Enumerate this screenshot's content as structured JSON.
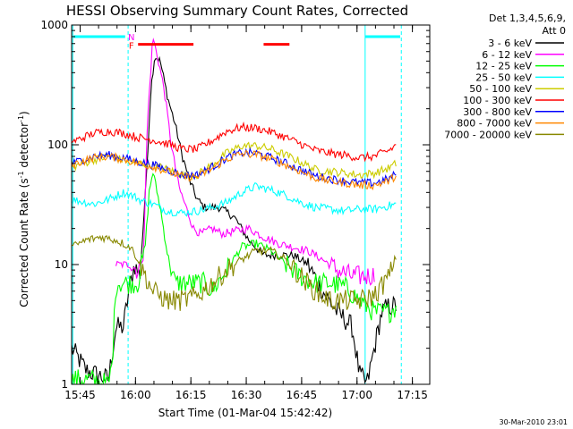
{
  "chart_data": {
    "type": "line",
    "title": "HESSI Observing Summary Count Rates, Corrected",
    "xlabel": "Start Time (01-Mar-04 15:42:42)",
    "ylabel_main": "Corrected Count Rate (s",
    "ylabel_sup1": "-1",
    "ylabel_mid": " detector",
    "ylabel_sup2": "-1",
    "ylabel_end": ")",
    "yscale": "log",
    "ylim": [
      1,
      1000
    ],
    "xlim_minutes": [
      0,
      97
    ],
    "yticks": [
      {
        "v": 1,
        "label": "1"
      },
      {
        "v": 10,
        "label": "10"
      },
      {
        "v": 100,
        "label": "100"
      },
      {
        "v": 1000,
        "label": "1000"
      }
    ],
    "xticks": [
      {
        "m": 2.3,
        "label": "15:45"
      },
      {
        "m": 17.3,
        "label": "16:00"
      },
      {
        "m": 32.3,
        "label": "16:15"
      },
      {
        "m": 47.3,
        "label": "16:30"
      },
      {
        "m": 62.3,
        "label": "16:45"
      },
      {
        "m": 77.3,
        "label": "17:00"
      },
      {
        "m": 92.3,
        "label": "17:15"
      }
    ],
    "legend_header": [
      "Det 1,3,4,5,6,9,",
      "Att 0"
    ],
    "legend_position": "right",
    "series": [
      {
        "name": "3 - 6 keV",
        "color": "#000000",
        "points": [
          [
            0,
            2
          ],
          [
            4,
            1.3
          ],
          [
            10,
            1.1
          ],
          [
            12,
            3
          ],
          [
            14,
            3
          ],
          [
            15.5,
            6
          ],
          [
            17,
            10
          ],
          [
            18.5,
            8
          ],
          [
            20,
            40
          ],
          [
            21.5,
            300
          ],
          [
            22.5,
            550
          ],
          [
            24,
            500
          ],
          [
            26,
            250
          ],
          [
            28,
            150
          ],
          [
            30,
            80
          ],
          [
            32,
            50
          ],
          [
            34,
            35
          ],
          [
            36,
            30
          ],
          [
            40,
            30
          ],
          [
            44,
            25
          ],
          [
            48,
            16
          ],
          [
            52,
            12
          ],
          [
            56,
            12
          ],
          [
            60,
            12
          ],
          [
            64,
            10
          ],
          [
            68,
            6
          ],
          [
            72,
            4
          ],
          [
            74,
            3.5
          ],
          [
            76,
            3
          ],
          [
            78,
            1.2
          ],
          [
            80,
            1
          ],
          [
            82,
            2
          ],
          [
            84,
            4
          ],
          [
            86,
            4.5
          ],
          [
            88,
            4.5
          ]
        ]
      },
      {
        "name": "6 - 12 keV",
        "color": "#ff00ff",
        "points": [
          [
            12,
            10
          ],
          [
            16,
            10
          ],
          [
            18,
            9
          ],
          [
            19.5,
            12
          ],
          [
            20.5,
            150
          ],
          [
            22,
            800
          ],
          [
            23.5,
            500
          ],
          [
            25,
            300
          ],
          [
            27,
            100
          ],
          [
            29,
            45
          ],
          [
            31,
            30
          ],
          [
            33,
            20
          ],
          [
            35,
            18
          ],
          [
            38,
            20
          ],
          [
            41,
            18
          ],
          [
            44,
            19
          ],
          [
            48,
            20
          ],
          [
            52,
            17
          ],
          [
            56,
            15
          ],
          [
            60,
            14
          ],
          [
            64,
            13
          ],
          [
            68,
            11
          ],
          [
            72,
            9
          ],
          [
            76,
            8
          ],
          [
            80,
            8
          ],
          [
            82,
            8.2
          ]
        ]
      },
      {
        "name": "12 - 25 keV",
        "color": "#00ff00",
        "points": [
          [
            0,
            1.1
          ],
          [
            5,
            1.1
          ],
          [
            10,
            1
          ],
          [
            11,
            1.5
          ],
          [
            12,
            7
          ],
          [
            16,
            7
          ],
          [
            18,
            7
          ],
          [
            20,
            15
          ],
          [
            21,
            40
          ],
          [
            22,
            60
          ],
          [
            24,
            30
          ],
          [
            26,
            12
          ],
          [
            28,
            7
          ],
          [
            32,
            7
          ],
          [
            36,
            7
          ],
          [
            38,
            6
          ],
          [
            42,
            9
          ],
          [
            46,
            14
          ],
          [
            50,
            15
          ],
          [
            54,
            13
          ],
          [
            58,
            10
          ],
          [
            62,
            8
          ],
          [
            66,
            7
          ],
          [
            70,
            7
          ],
          [
            74,
            6.5
          ],
          [
            78,
            5
          ],
          [
            82,
            4
          ],
          [
            86,
            4
          ],
          [
            88,
            4.5
          ]
        ]
      },
      {
        "name": "25 - 50 keV",
        "color": "#00ffff",
        "points": [
          [
            0,
            35
          ],
          [
            6,
            32
          ],
          [
            10,
            35
          ],
          [
            14,
            40
          ],
          [
            17,
            37
          ],
          [
            19,
            34
          ],
          [
            22,
            32
          ],
          [
            26,
            28
          ],
          [
            30,
            27
          ],
          [
            34,
            28
          ],
          [
            38,
            30
          ],
          [
            42,
            33
          ],
          [
            46,
            40
          ],
          [
            50,
            45
          ],
          [
            54,
            42
          ],
          [
            58,
            38
          ],
          [
            62,
            33
          ],
          [
            66,
            30
          ],
          [
            70,
            29
          ],
          [
            74,
            28
          ],
          [
            78,
            29
          ],
          [
            82,
            29
          ],
          [
            86,
            31
          ],
          [
            88,
            32
          ]
        ]
      },
      {
        "name": "50 - 100 keV",
        "color": "#cccc00",
        "points": [
          [
            0,
            65
          ],
          [
            6,
            75
          ],
          [
            10,
            80
          ],
          [
            14,
            75
          ],
          [
            18,
            70
          ],
          [
            22,
            68
          ],
          [
            26,
            62
          ],
          [
            30,
            56
          ],
          [
            34,
            56
          ],
          [
            38,
            68
          ],
          [
            42,
            85
          ],
          [
            46,
            98
          ],
          [
            50,
            98
          ],
          [
            54,
            92
          ],
          [
            58,
            82
          ],
          [
            62,
            72
          ],
          [
            66,
            62
          ],
          [
            70,
            60
          ],
          [
            74,
            58
          ],
          [
            78,
            56
          ],
          [
            82,
            58
          ],
          [
            86,
            64
          ],
          [
            88,
            70
          ]
        ]
      },
      {
        "name": "100 - 300 keV",
        "color": "#ff0000",
        "points": [
          [
            0,
            105
          ],
          [
            6,
            125
          ],
          [
            10,
            130
          ],
          [
            14,
            125
          ],
          [
            18,
            115
          ],
          [
            22,
            110
          ],
          [
            26,
            102
          ],
          [
            30,
            92
          ],
          [
            34,
            92
          ],
          [
            38,
            108
          ],
          [
            42,
            130
          ],
          [
            46,
            140
          ],
          [
            50,
            138
          ],
          [
            54,
            128
          ],
          [
            58,
            115
          ],
          [
            62,
            102
          ],
          [
            66,
            90
          ],
          [
            70,
            85
          ],
          [
            74,
            82
          ],
          [
            78,
            78
          ],
          [
            82,
            80
          ],
          [
            86,
            90
          ],
          [
            88,
            100
          ]
        ]
      },
      {
        "name": "300 - 800 keV",
        "color": "#0000ff",
        "points": [
          [
            0,
            70
          ],
          [
            6,
            80
          ],
          [
            10,
            82
          ],
          [
            14,
            78
          ],
          [
            18,
            72
          ],
          [
            22,
            68
          ],
          [
            26,
            62
          ],
          [
            30,
            56
          ],
          [
            34,
            56
          ],
          [
            38,
            65
          ],
          [
            42,
            78
          ],
          [
            46,
            86
          ],
          [
            50,
            85
          ],
          [
            54,
            78
          ],
          [
            58,
            70
          ],
          [
            62,
            62
          ],
          [
            66,
            55
          ],
          [
            70,
            52
          ],
          [
            74,
            50
          ],
          [
            78,
            48
          ],
          [
            82,
            48
          ],
          [
            86,
            52
          ],
          [
            88,
            58
          ]
        ]
      },
      {
        "name": "800 - 7000 keV",
        "color": "#ff8800",
        "points": [
          [
            0,
            68
          ],
          [
            6,
            78
          ],
          [
            10,
            80
          ],
          [
            14,
            76
          ],
          [
            18,
            70
          ],
          [
            22,
            66
          ],
          [
            26,
            60
          ],
          [
            30,
            54
          ],
          [
            34,
            54
          ],
          [
            38,
            63
          ],
          [
            42,
            76
          ],
          [
            46,
            84
          ],
          [
            50,
            83
          ],
          [
            54,
            76
          ],
          [
            58,
            68
          ],
          [
            62,
            60
          ],
          [
            66,
            53
          ],
          [
            70,
            50
          ],
          [
            74,
            48
          ],
          [
            78,
            46
          ],
          [
            82,
            46
          ],
          [
            86,
            50
          ],
          [
            88,
            56
          ]
        ]
      },
      {
        "name": "7000 - 20000 keV",
        "color": "#888800",
        "points": [
          [
            0,
            14
          ],
          [
            4,
            16
          ],
          [
            8,
            17
          ],
          [
            12,
            16
          ],
          [
            16,
            14
          ],
          [
            18,
            11
          ],
          [
            20,
            8
          ],
          [
            22,
            6
          ],
          [
            26,
            5
          ],
          [
            30,
            5
          ],
          [
            34,
            5.5
          ],
          [
            38,
            7
          ],
          [
            42,
            9
          ],
          [
            46,
            11
          ],
          [
            50,
            13
          ],
          [
            54,
            13
          ],
          [
            58,
            11
          ],
          [
            62,
            8
          ],
          [
            66,
            6
          ],
          [
            70,
            5
          ],
          [
            74,
            5
          ],
          [
            78,
            5
          ],
          [
            82,
            5.5
          ],
          [
            86,
            8
          ],
          [
            88,
            12
          ]
        ]
      }
    ],
    "annotations": {
      "att_bars": [
        {
          "color": "#00ffff",
          "x0": 0.5,
          "x1": 14.5,
          "y": 800
        },
        {
          "color": "#00ffff",
          "x0": 79.5,
          "x1": 89,
          "y": 800
        }
      ],
      "flare_bars": [
        {
          "color": "#ff0000",
          "x0": 18,
          "x1": 33,
          "y": 690
        },
        {
          "color": "#ff0000",
          "x0": 52,
          "x1": 59,
          "y": 690
        }
      ],
      "markers": [
        {
          "text": "N",
          "m": 16.2,
          "y": 800,
          "color": "#ff00ff"
        },
        {
          "text": "F",
          "m": 16.2,
          "y": 680,
          "color": "#ff0000"
        }
      ],
      "vlines_dashed": [
        {
          "m": 15.3,
          "color": "#00ffff"
        },
        {
          "m": 89.3,
          "color": "#00ffff"
        }
      ],
      "vlines_solid": [
        {
          "m": 0.3,
          "color": "#00ffff"
        },
        {
          "m": 79.5,
          "color": "#00ffff"
        }
      ]
    },
    "grid": false
  },
  "stamp": "30-Mar-2010 23:01"
}
